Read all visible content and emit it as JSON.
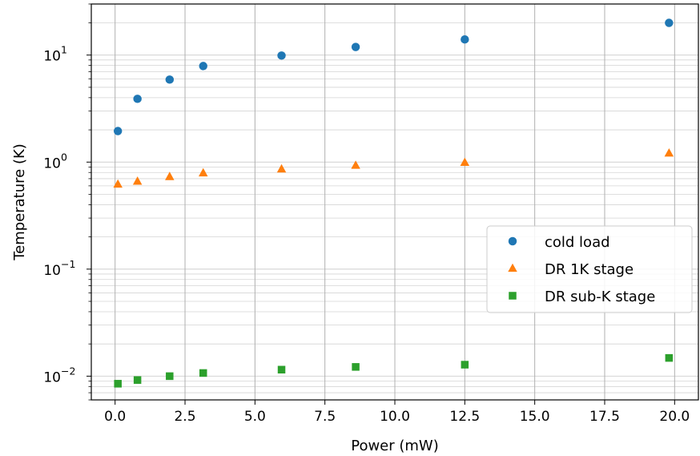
{
  "chart_data": {
    "type": "scatter",
    "title": "",
    "xlabel": "Power (mW)",
    "ylabel": "Temperature (K)",
    "xlim": [
      -0.85,
      20.85
    ],
    "ylim": [
      0.006,
      30
    ],
    "yscale": "log",
    "grid": "on (major and minor)",
    "legend_position": "center-right",
    "x_ticks": [
      "0.0",
      "2.5",
      "5.0",
      "7.5",
      "10.0",
      "12.5",
      "15.0",
      "17.5",
      "20.0"
    ],
    "y_ticks": [
      {
        "base": "10",
        "exp": "1",
        "value": 10
      },
      {
        "base": "10",
        "exp": "0",
        "value": 1
      },
      {
        "base": "10",
        "exp": "−1",
        "value": 0.1
      },
      {
        "base": "10",
        "exp": "−2",
        "value": 0.01
      }
    ],
    "series": [
      {
        "name": "cold load",
        "marker": "circle",
        "color": "#1f77b4",
        "x": [
          0.1,
          0.8,
          1.95,
          3.15,
          5.95,
          8.6,
          12.5,
          19.8
        ],
        "y": [
          1.95,
          3.9,
          5.9,
          7.9,
          9.9,
          11.9,
          14.0,
          20.0
        ]
      },
      {
        "name": "DR 1K stage",
        "marker": "triangle",
        "color": "#ff7f0e",
        "x": [
          0.1,
          0.8,
          1.95,
          3.15,
          5.95,
          8.6,
          12.5,
          19.8
        ],
        "y": [
          0.62,
          0.66,
          0.73,
          0.79,
          0.86,
          0.93,
          0.99,
          1.21
        ]
      },
      {
        "name": "DR sub-K stage",
        "marker": "square",
        "color": "#2ca02c",
        "x": [
          0.1,
          0.8,
          1.95,
          3.15,
          5.95,
          8.6,
          12.5,
          19.8
        ],
        "y": [
          0.0085,
          0.0092,
          0.01,
          0.0107,
          0.0115,
          0.0122,
          0.0128,
          0.0148
        ]
      }
    ]
  }
}
